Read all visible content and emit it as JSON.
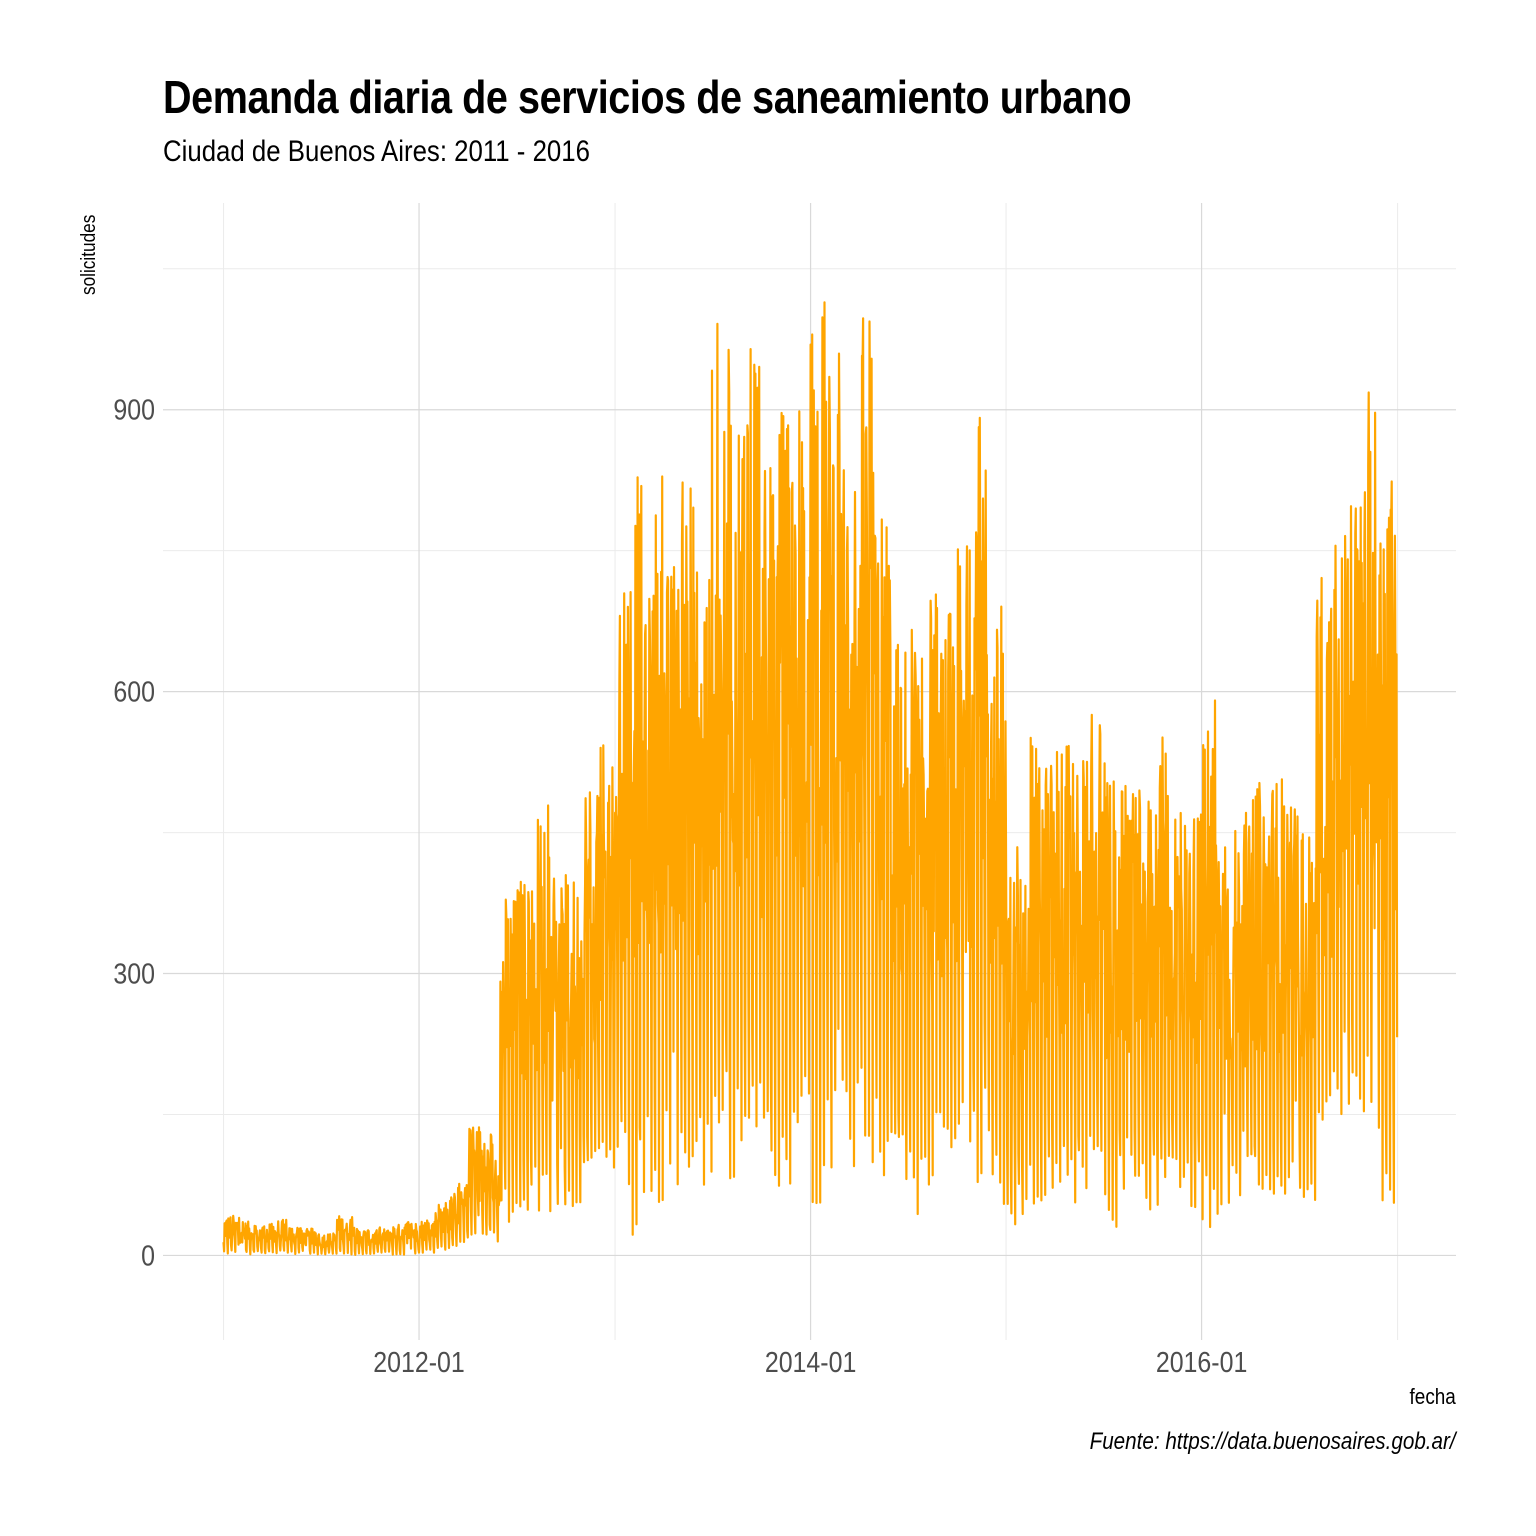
{
  "chart_data": {
    "type": "line",
    "title": "Demanda diaria de servicios de saneamiento urbano",
    "subtitle": "Ciudad de Buenos Aires: 2011 - 2016",
    "xlabel": "fecha",
    "ylabel": "solicitudes",
    "caption": "Fuente: https://data.buenosaires.gob.ar/",
    "line_color": "#FFA500",
    "grid": true,
    "legend": "none",
    "x_range": [
      "2010-09-10",
      "2017-04-20"
    ],
    "ylim": [
      -90,
      1120
    ],
    "x_ticks": [
      "2012-01",
      "2014-01",
      "2016-01"
    ],
    "x_minor_ticks": [
      "2011-01",
      "2013-01",
      "2015-01",
      "2017-01"
    ],
    "y_ticks": [
      0,
      300,
      600,
      900
    ],
    "y_minor_ticks": [
      150,
      450,
      750,
      1050
    ],
    "series_start": "2011-01-01",
    "series_end": "2016-12-31",
    "series_note": "daily series; values summarized as monthly [low, high] envelope estimates read from the figure",
    "monthly_envelope": [
      [
        "2011-01",
        0,
        45
      ],
      [
        "2011-02",
        0,
        38
      ],
      [
        "2011-03",
        0,
        35
      ],
      [
        "2011-04",
        0,
        40
      ],
      [
        "2011-05",
        0,
        35
      ],
      [
        "2011-06",
        0,
        30
      ],
      [
        "2011-07",
        0,
        25
      ],
      [
        "2011-08",
        0,
        45
      ],
      [
        "2011-09",
        0,
        30
      ],
      [
        "2011-10",
        0,
        30
      ],
      [
        "2011-11",
        0,
        35
      ],
      [
        "2011-12",
        0,
        38
      ],
      [
        "2012-01",
        2,
        40
      ],
      [
        "2012-02",
        4,
        60
      ],
      [
        "2012-03",
        8,
        80
      ],
      [
        "2012-04",
        10,
        145
      ],
      [
        "2012-05",
        12,
        130
      ],
      [
        "2012-06",
        20,
        405
      ],
      [
        "2012-07",
        40,
        425
      ],
      [
        "2012-08",
        35,
        495
      ],
      [
        "2012-09",
        30,
        405
      ],
      [
        "2012-10",
        40,
        425
      ],
      [
        "2012-11",
        50,
        545
      ],
      [
        "2012-12",
        60,
        570
      ],
      [
        "2013-01",
        50,
        800
      ],
      [
        "2013-02",
        0,
        890
      ],
      [
        "2013-03",
        40,
        845
      ],
      [
        "2013-04",
        60,
        770
      ],
      [
        "2013-05",
        60,
        870
      ],
      [
        "2013-06",
        50,
        800
      ],
      [
        "2013-07",
        60,
        1035
      ],
      [
        "2013-08",
        55,
        1020
      ],
      [
        "2013-09",
        60,
        1075
      ],
      [
        "2013-10",
        60,
        880
      ],
      [
        "2013-11",
        50,
        950
      ],
      [
        "2013-12",
        70,
        970
      ],
      [
        "2014-01",
        30,
        1080
      ],
      [
        "2014-02",
        70,
        1000
      ],
      [
        "2014-03",
        70,
        950
      ],
      [
        "2014-04",
        70,
        1015
      ],
      [
        "2014-05",
        60,
        850
      ],
      [
        "2014-06",
        50,
        690
      ],
      [
        "2014-07",
        30,
        670
      ],
      [
        "2014-08",
        60,
        745
      ],
      [
        "2014-09",
        60,
        730
      ],
      [
        "2014-10",
        70,
        800
      ],
      [
        "2014-11",
        60,
        950
      ],
      [
        "2014-12",
        40,
        710
      ],
      [
        "2015-01",
        20,
        440
      ],
      [
        "2015-02",
        30,
        570
      ],
      [
        "2015-03",
        40,
        560
      ],
      [
        "2015-04",
        50,
        580
      ],
      [
        "2015-05",
        40,
        555
      ],
      [
        "2015-06",
        50,
        605
      ],
      [
        "2015-07",
        10,
        540
      ],
      [
        "2015-08",
        40,
        525
      ],
      [
        "2015-09",
        30,
        520
      ],
      [
        "2015-10",
        40,
        580
      ],
      [
        "2015-11",
        50,
        525
      ],
      [
        "2015-12",
        40,
        500
      ],
      [
        "2016-01",
        10,
        595
      ],
      [
        "2016-02",
        40,
        480
      ],
      [
        "2016-03",
        50,
        480
      ],
      [
        "2016-04",
        40,
        530
      ],
      [
        "2016-05",
        40,
        540
      ],
      [
        "2016-06",
        40,
        500
      ],
      [
        "2016-07",
        50,
        480
      ],
      [
        "2016-08",
        80,
        755
      ],
      [
        "2016-09",
        110,
        800
      ],
      [
        "2016-10",
        100,
        860
      ],
      [
        "2016-11",
        100,
        955
      ],
      [
        "2016-12",
        20,
        880
      ]
    ]
  }
}
